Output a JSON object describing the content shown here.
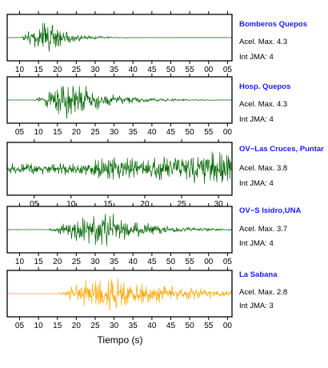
{
  "chart_data": {
    "type": "line",
    "xlabel": "Tiempo (s)",
    "panels": [
      {
        "name": "Bomberos Quepos",
        "accel_label": "Acel. Max. 4.3",
        "jma_label": "Int JMA: 4",
        "color": "#006400",
        "ticks": [
          "10",
          "15",
          "20",
          "25",
          "30",
          "35",
          "40",
          "45",
          "50",
          "55",
          "00",
          "05"
        ],
        "envelope": {
          "start": 0.06,
          "peak": 0.17,
          "decay": 0.09,
          "amp": 1.0,
          "end": 1.0
        }
      },
      {
        "name": "Hosp. Quepos",
        "accel_label": "Acel. Max. 4.3",
        "jma_label": "Int JMA: 4",
        "color": "#006400",
        "ticks": [
          "05",
          "10",
          "15",
          "20",
          "25",
          "30",
          "35",
          "40",
          "45",
          "50",
          "55",
          "00"
        ],
        "envelope": {
          "start": 0.12,
          "peak": 0.28,
          "decay": 0.16,
          "amp": 1.0,
          "end": 1.0
        }
      },
      {
        "name": "OV−Las Cruces, Puntar",
        "accel_label": "Acel. Max. 3.8",
        "jma_label": "Int JMA: 4",
        "color": "#006400",
        "ticks": [
          "05",
          "10",
          "15",
          "20",
          "25",
          "30"
        ],
        "envelope": {
          "start": 0.0,
          "peak": 0.85,
          "decay": 0.5,
          "amp": 1.0,
          "end": 1.0
        }
      },
      {
        "name": "OV−S Isidro,UNA",
        "accel_label": "Acel. Max. 3.7",
        "jma_label": "Int JMA: 4",
        "color": "#006400",
        "ticks": [
          "10",
          "15",
          "20",
          "25",
          "30",
          "35",
          "40",
          "45",
          "50",
          "55",
          "00",
          "05"
        ],
        "envelope": {
          "start": 0.18,
          "peak": 0.42,
          "decay": 0.18,
          "amp": 1.0,
          "end": 1.0
        }
      },
      {
        "name": "La Sabana",
        "accel_label": "Acel. Max. 2.8",
        "jma_label": "Int JMA: 3",
        "color": "#ffa500",
        "ticks": [
          "05",
          "10",
          "15",
          "20",
          "25",
          "30",
          "35",
          "40",
          "45",
          "50",
          "55",
          "00"
        ],
        "envelope": {
          "start": 0.22,
          "peak": 0.42,
          "decay": 0.35,
          "amp": 1.0,
          "end": 1.0
        }
      }
    ]
  }
}
